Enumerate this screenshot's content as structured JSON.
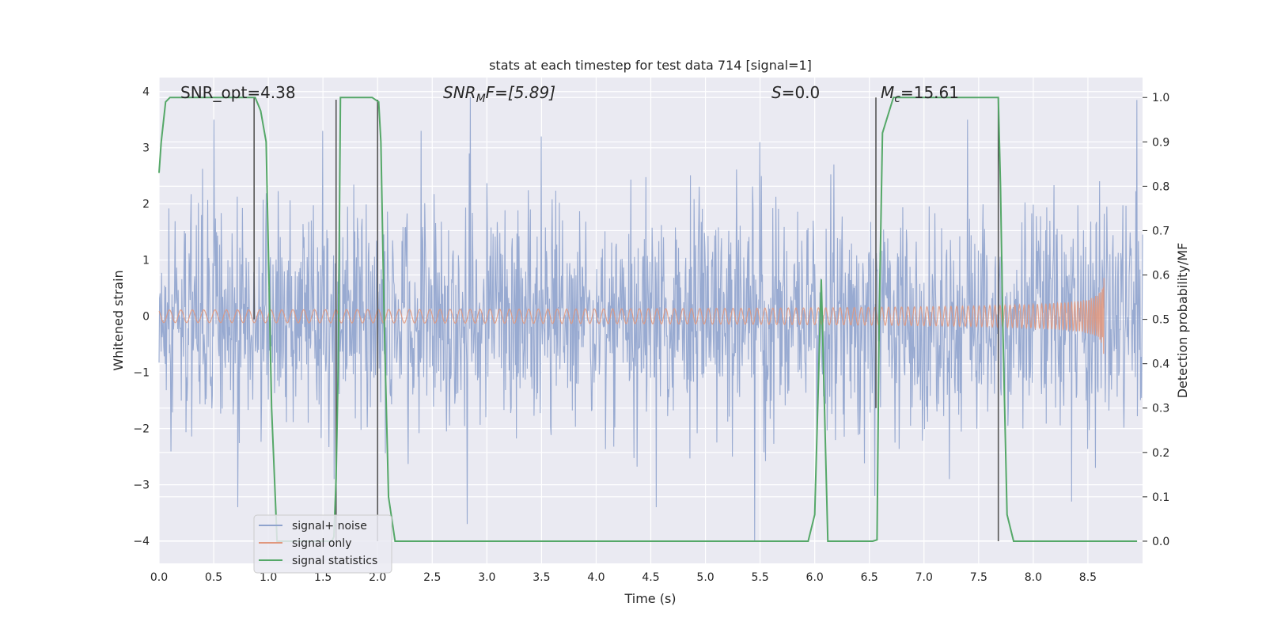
{
  "chart_data": {
    "type": "line",
    "title": "stats at each timestep for test data 714 [signal=1]",
    "xlabel": "Time (s)",
    "ylabel": "Whitened strain",
    "ylabel_right": "Detection probability/MF",
    "xlim": [
      0.0,
      9.0
    ],
    "ylim_left": [
      -4.4,
      4.25
    ],
    "ylim_right": [
      -0.05,
      1.045
    ],
    "x_ticks": [
      "0.0",
      "0.5",
      "1.0",
      "1.5",
      "2.0",
      "2.5",
      "3.0",
      "3.5",
      "4.0",
      "4.5",
      "5.0",
      "5.5",
      "6.0",
      "6.5",
      "7.0",
      "7.5",
      "8.0",
      "8.5"
    ],
    "y_ticks_left": [
      "4",
      "3",
      "2",
      "1",
      "0",
      "−1",
      "−2",
      "−3",
      "−4"
    ],
    "y_ticks_right": [
      "1.0",
      "0.9",
      "0.8",
      "0.7",
      "0.6",
      "0.5",
      "0.4",
      "0.3",
      "0.2",
      "0.1",
      "0.0"
    ],
    "grid": true,
    "legend_position": "lower-left",
    "colors": {
      "noise": "#8fa3cd",
      "signal": "#e0977d",
      "stats": "#55a868",
      "vline": "#555555",
      "background": "#eaeaf2",
      "grid": "#ffffff"
    },
    "annotations": {
      "snr_opt": "SNR_opt=4.38",
      "snr_mf_prefix": "SNR",
      "snr_mf_sub": "M",
      "snr_mf_suffix": "F=[5.89]",
      "s_prefix": "S",
      "s_suffix": "=0.0",
      "mc_prefix": "M",
      "mc_sub": "c",
      "mc_suffix": "=15.61"
    },
    "series": [
      {
        "name": "signal+ noise",
        "kind": "noise",
        "x_range": [
          0.0,
          9.0
        ],
        "typical_abs_amplitude": 1.6,
        "peaks": [
          {
            "x": 0.5,
            "y": 3.5
          },
          {
            "x": 0.72,
            "y": -3.4
          },
          {
            "x": 1.5,
            "y": 3.3
          },
          {
            "x": 2.4,
            "y": 3.3
          },
          {
            "x": 2.82,
            "y": -3.7
          },
          {
            "x": 2.85,
            "y": 3.9
          },
          {
            "x": 3.5,
            "y": 3.2
          },
          {
            "x": 4.55,
            "y": -3.4
          },
          {
            "x": 5.45,
            "y": -4.0
          },
          {
            "x": 5.5,
            "y": 3.1
          },
          {
            "x": 6.55,
            "y": -3.2
          },
          {
            "x": 7.4,
            "y": 3.5
          },
          {
            "x": 8.35,
            "y": -3.3
          },
          {
            "x": 8.95,
            "y": 3.85
          }
        ]
      },
      {
        "name": "signal only",
        "kind": "chirp",
        "x_range": [
          0.0,
          8.65
        ],
        "max_amplitude": 0.78,
        "merger_time": 8.65
      },
      {
        "name": "signal statistics",
        "kind": "probability",
        "x": [
          0.0,
          0.02,
          0.06,
          0.1,
          0.2,
          0.3,
          0.5,
          0.7,
          0.88,
          0.93,
          0.98,
          1.03,
          1.08,
          1.12,
          1.3,
          1.5,
          1.58,
          1.6,
          1.62,
          1.64,
          1.66,
          1.7,
          1.8,
          1.95,
          2.01,
          2.03,
          2.06,
          2.1,
          2.16,
          2.3,
          3.0,
          4.0,
          5.0,
          5.94,
          6.0,
          6.06,
          6.12,
          6.2,
          6.3,
          6.4,
          6.53,
          6.57,
          6.59,
          6.62,
          6.72,
          6.8,
          7.0,
          7.3,
          7.68,
          7.7,
          7.72,
          7.76,
          7.82,
          8.0,
          8.5,
          8.95
        ],
        "values": [
          0.83,
          0.9,
          0.99,
          1.0,
          1.0,
          1.0,
          1.0,
          1.0,
          1.0,
          0.97,
          0.9,
          0.3,
          0.0,
          0.0,
          0.0,
          0.0,
          0.0,
          0.01,
          0.14,
          0.4,
          1.0,
          1.0,
          1.0,
          1.0,
          0.99,
          0.9,
          0.5,
          0.1,
          0.0,
          0.0,
          0.0,
          0.0,
          0.0,
          0.0,
          0.06,
          0.59,
          0.0,
          0.0,
          0.0,
          0.0,
          0.0,
          0.003,
          0.5,
          0.92,
          1.0,
          1.0,
          1.0,
          1.0,
          1.0,
          0.8,
          0.5,
          0.06,
          0.0,
          0.0,
          0.0,
          0.0
        ]
      }
    ],
    "vertical_lines": [
      {
        "x": 0.87,
        "top": 1.0,
        "bottom": 0.5
      },
      {
        "x": 1.62,
        "top": 0.995,
        "bottom": 0.0
      },
      {
        "x": 2.0,
        "top": 0.995,
        "bottom": 0.0
      },
      {
        "x": 6.56,
        "top": 1.0,
        "bottom": 0.3
      },
      {
        "x": 7.68,
        "top": 1.0,
        "bottom": 0.0
      }
    ],
    "legend": [
      {
        "label": "signal+ noise",
        "color_key": "noise"
      },
      {
        "label": "signal only",
        "color_key": "signal"
      },
      {
        "label": "signal statistics",
        "color_key": "stats"
      }
    ]
  }
}
